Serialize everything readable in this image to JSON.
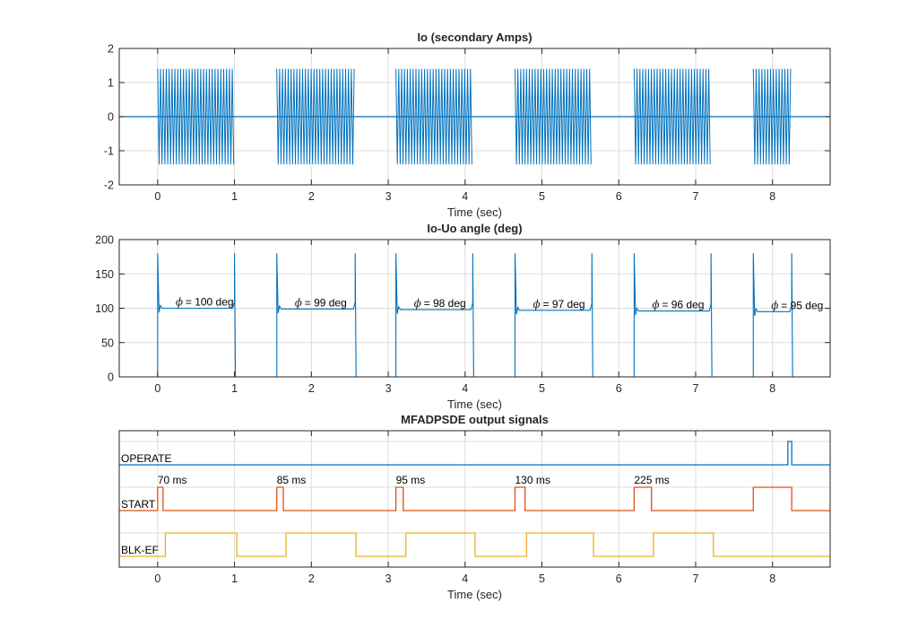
{
  "chart_data": [
    {
      "type": "line",
      "title": "Io (secondary Amps)",
      "xlabel": "Time (sec)",
      "ylabel": "",
      "xlim": [
        -0.5,
        8.75
      ],
      "ylim": [
        -2,
        2
      ],
      "xticks": [
        0,
        1,
        2,
        3,
        4,
        5,
        6,
        7,
        8
      ],
      "yticks": [
        -2,
        -1,
        0,
        1,
        2
      ],
      "grid": true,
      "color": "#0072BD",
      "series": [
        {
          "kind": "oscillating-bursts",
          "baseline": 0,
          "amplitude": 1.4,
          "bursts": [
            [
              0.0,
              1.0
            ],
            [
              1.55,
              2.57
            ],
            [
              3.1,
              4.1
            ],
            [
              4.65,
              5.65
            ],
            [
              6.2,
              7.2
            ],
            [
              7.75,
              8.25
            ]
          ]
        }
      ]
    },
    {
      "type": "line",
      "title": "Io-Uo angle (deg)",
      "xlabel": "Time (sec)",
      "ylabel": "",
      "xlim": [
        -0.5,
        8.75
      ],
      "ylim": [
        0,
        200
      ],
      "xticks": [
        0,
        1,
        2,
        3,
        4,
        5,
        6,
        7,
        8
      ],
      "yticks": [
        0,
        50,
        100,
        150,
        200
      ],
      "grid": true,
      "color": "#0072BD",
      "segments": [
        {
          "start": 0.0,
          "end": 1.0,
          "angle": 100,
          "label": "= 100 deg"
        },
        {
          "start": 1.55,
          "end": 2.57,
          "angle": 99,
          "label": "= 99 deg"
        },
        {
          "start": 3.1,
          "end": 4.1,
          "angle": 98,
          "label": "= 98 deg"
        },
        {
          "start": 4.65,
          "end": 5.65,
          "angle": 97,
          "label": "= 97 deg"
        },
        {
          "start": 6.2,
          "end": 7.2,
          "angle": 96,
          "label": "= 96 deg"
        },
        {
          "start": 7.75,
          "end": 8.25,
          "angle": 95,
          "label": "= 95 deg"
        }
      ],
      "spike_peak": 180,
      "symbol": "ϕ"
    },
    {
      "type": "line",
      "title": "MFADPSDE output signals",
      "xlabel": "Time (sec)",
      "xlim": [
        -0.5,
        8.75
      ],
      "xticks": [
        0,
        1,
        2,
        3,
        4,
        5,
        6,
        7,
        8
      ],
      "grid": true,
      "series": [
        {
          "name": "OPERATE",
          "color": "#0072BD",
          "high": [
            [
              8.2,
              8.25
            ]
          ]
        },
        {
          "name": "START",
          "color": "#D95319",
          "high": [
            [
              0.0,
              0.07
            ],
            [
              1.55,
              1.635
            ],
            [
              3.1,
              3.195
            ],
            [
              4.65,
              4.78
            ],
            [
              6.2,
              6.425
            ],
            [
              7.75,
              8.25
            ]
          ]
        },
        {
          "name": "BLK-EF",
          "color": "#EDB120",
          "high": [
            [
              0.1,
              1.03
            ],
            [
              1.67,
              2.58
            ],
            [
              3.23,
              4.13
            ],
            [
              4.8,
              5.67
            ],
            [
              6.45,
              7.23
            ]
          ]
        }
      ],
      "annotations": [
        "70 ms",
        "85 ms",
        "95 ms",
        "130 ms",
        "225 ms"
      ],
      "annotation_x": [
        0.0,
        1.55,
        3.1,
        4.65,
        6.2
      ]
    }
  ]
}
